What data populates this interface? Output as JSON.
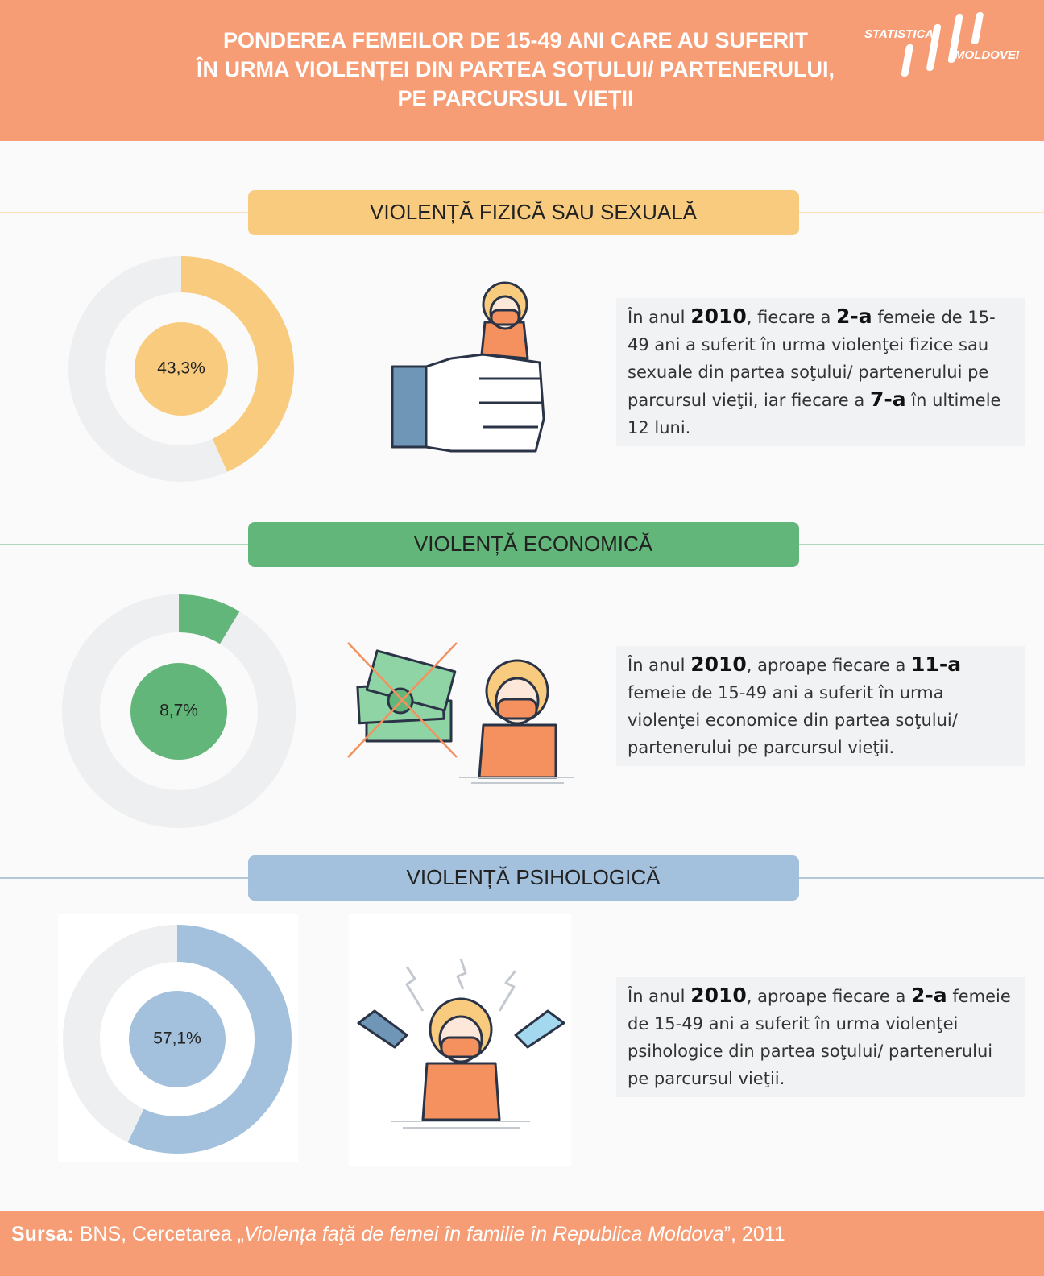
{
  "header": {
    "title": [
      "PONDEREA FEMEILOR DE 15-49 ANI CARE AU SUFERIT",
      "ÎN URMA VIOLENȚEI DIN PARTEA SOȚULUI/ PARTENERULUI,",
      "PE PARCURSUL VIEȚII"
    ],
    "logo": [
      "STATISTICA",
      "MOLDOVEI"
    ]
  },
  "chart_data": [
    {
      "type": "donut",
      "title": "VIOLENȚĂ FIZICĂ SAU SEXUALĂ",
      "values": [
        43.3
      ],
      "value_labels": [
        "43,3%"
      ],
      "color": "#f9cb7e"
    },
    {
      "type": "donut",
      "title": "VIOLENȚĂ ECONOMICĂ",
      "values": [
        8.7
      ],
      "value_labels": [
        "8,7%"
      ],
      "color": "#63b679"
    },
    {
      "type": "donut",
      "title": "VIOLENȚĂ PSIHOLOGICĂ",
      "values": [
        57.1
      ],
      "value_labels": [
        "57,1%"
      ],
      "color": "#a3c1dd"
    }
  ],
  "sections": [
    {
      "text": [
        {
          "text": "În anul "
        },
        {
          "text": "2010",
          "bold": true
        },
        {
          "text": ", fiecare a "
        },
        {
          "text": "2-a",
          "bold": true
        },
        {
          "text": " femeie de 15-49 ani a suferit în urma violenţei fizice sau sexuale din partea soţului/ partenerului pe parcursul vieţii, iar fiecare a "
        },
        {
          "text": "7-a",
          "bold": true
        },
        {
          "text": " în ultimele 12 luni."
        }
      ]
    },
    {
      "text": [
        {
          "text": "În anul "
        },
        {
          "text": "2010",
          "bold": true
        },
        {
          "text": ", aproape fiecare a "
        },
        {
          "text": "11-a",
          "bold": true
        },
        {
          "text": " femeie de 15-49 ani a suferit în urma violenţei economice din partea soţului/ partenerului pe parcursul vieţii."
        }
      ]
    },
    {
      "text": [
        {
          "text": "În anul "
        },
        {
          "text": "2010",
          "bold": true
        },
        {
          "text": ", aproape fiecare a "
        },
        {
          "text": "2-a",
          "bold": true
        },
        {
          "text": " femeie de 15-49 ani a suferit în urma violenţei psihologice din partea soţului/ partenerului pe parcursul vieţii."
        }
      ]
    }
  ],
  "footer": [
    {
      "text": "Sursa:",
      "bold": true
    },
    {
      "text": " BNS, Cercetarea „"
    },
    {
      "text": "Violența faţă de femei în familie în Republica Moldova",
      "italic": true
    },
    {
      "text": "”, 2011"
    }
  ]
}
